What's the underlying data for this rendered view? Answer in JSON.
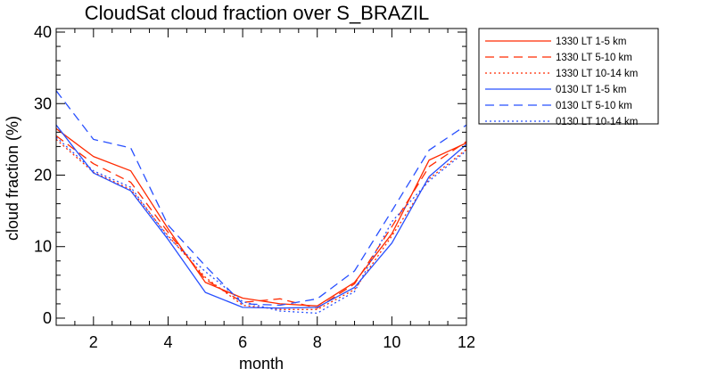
{
  "chart_data": {
    "type": "line",
    "title": "CloudSat cloud fraction over S_BRAZIL",
    "xlabel": "month",
    "ylabel": "cloud fraction (%)",
    "xlim": [
      1,
      12
    ],
    "ylim": [
      -1,
      40.5
    ],
    "xticks": [
      2,
      4,
      6,
      8,
      10,
      12
    ],
    "yticks": [
      0,
      10,
      20,
      30,
      40
    ],
    "x": [
      1,
      2,
      3,
      4,
      5,
      6,
      7,
      8,
      9,
      10,
      11,
      12
    ],
    "legend_position": "top-right, outside plot",
    "series": [
      {
        "name": "1330 LT 1-5 km",
        "color": "#ff2a00",
        "dash": "solid",
        "values": [
          26.5,
          22.6,
          20.6,
          12.5,
          5.0,
          2.8,
          2.0,
          1.7,
          5.0,
          11.8,
          22.1,
          24.5
        ]
      },
      {
        "name": "1330 LT 5-10 km",
        "color": "#ff2a00",
        "dash": "dashed",
        "values": [
          25.5,
          21.6,
          19.0,
          12.0,
          5.4,
          2.2,
          2.7,
          1.4,
          4.8,
          12.8,
          21.2,
          24.7
        ]
      },
      {
        "name": "1330 LT 10-14 km",
        "color": "#ff2a00",
        "dash": "dotted",
        "values": [
          25.0,
          20.4,
          18.0,
          11.5,
          5.7,
          1.8,
          1.2,
          1.2,
          4.0,
          11.5,
          19.5,
          23.6
        ]
      },
      {
        "name": "0130 LT 1-5 km",
        "color": "#2850ff",
        "dash": "solid",
        "values": [
          27.0,
          20.3,
          17.8,
          11.0,
          3.6,
          1.5,
          1.4,
          1.5,
          4.3,
          10.5,
          19.8,
          24.3
        ]
      },
      {
        "name": "0130 LT 5-10 km",
        "color": "#2850ff",
        "dash": "dashed",
        "values": [
          31.8,
          25.0,
          23.8,
          13.0,
          7.3,
          2.0,
          1.8,
          2.7,
          6.6,
          15.0,
          23.5,
          27.0
        ]
      },
      {
        "name": "0130 LT 10-14 km",
        "color": "#2850ff",
        "dash": "dotted",
        "values": [
          25.3,
          20.6,
          18.3,
          11.3,
          6.5,
          2.3,
          1.0,
          0.7,
          3.7,
          13.5,
          19.2,
          23.4
        ]
      }
    ]
  }
}
